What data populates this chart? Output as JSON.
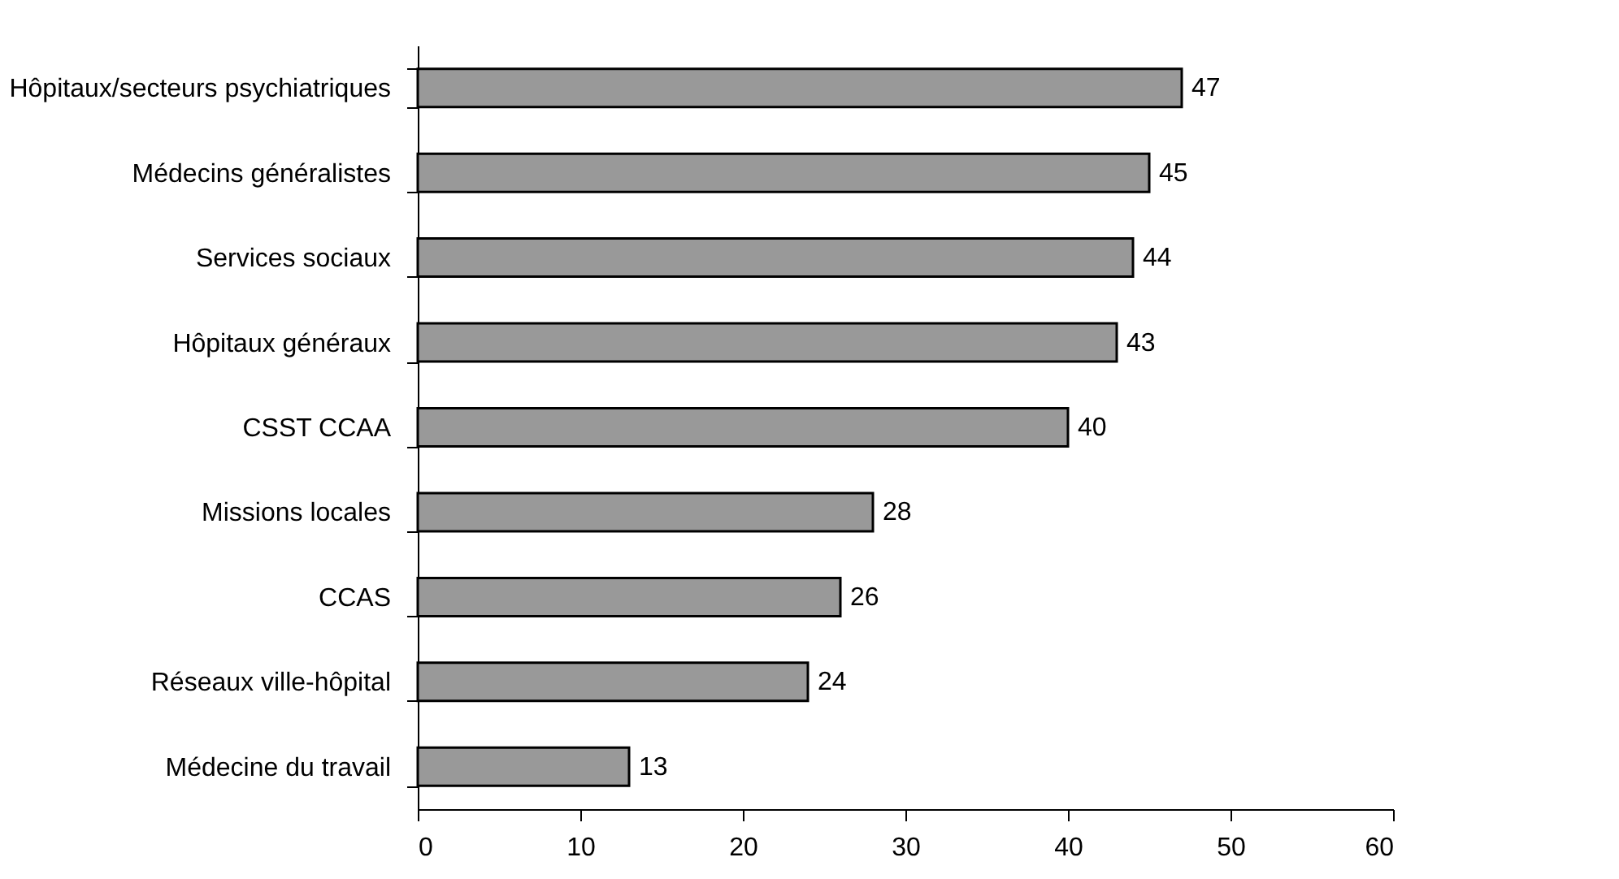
{
  "chart_data": {
    "type": "bar",
    "orientation": "horizontal",
    "categories": [
      "Hôpitaux/secteurs psychiatriques",
      "Médecins généralistes",
      "Services sociaux",
      "Hôpitaux généraux",
      "CSST CCAA",
      "Missions locales",
      "CCAS",
      "Réseaux ville-hôpital",
      "Médecine du travail"
    ],
    "values": [
      47,
      45,
      44,
      43,
      40,
      28,
      26,
      24,
      13
    ],
    "color": "#999999",
    "xlim": [
      0,
      60
    ],
    "xticks": [
      0,
      10,
      20,
      30,
      40,
      50,
      60
    ],
    "data_labels": true,
    "grid": false
  }
}
